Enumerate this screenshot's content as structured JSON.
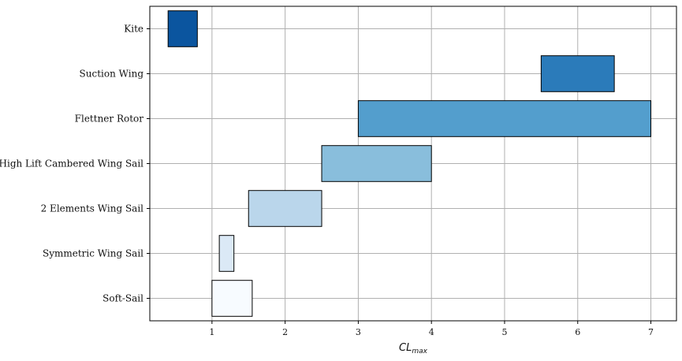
{
  "chart_data": {
    "type": "bar",
    "orientation": "horizontal-range",
    "title": "",
    "xlabel": "CL",
    "xlabel_subscript": "max",
    "ylabel": "",
    "xlim": [
      0.15,
      7.35
    ],
    "xticks": [
      "1",
      "2",
      "3",
      "4",
      "5",
      "6",
      "7"
    ],
    "grid": true,
    "categories": [
      "Kite",
      "Suction Wing",
      "Flettner Rotor",
      "High Lift Cambered Wing Sail",
      "2 Elements Wing Sail",
      "Symmetric Wing Sail",
      "Soft-Sail"
    ],
    "ranges": [
      {
        "start": 0.4,
        "end": 0.8,
        "color": "#0b559f"
      },
      {
        "start": 5.5,
        "end": 6.5,
        "color": "#2b7bba"
      },
      {
        "start": 3.0,
        "end": 7.0,
        "color": "#539ecd"
      },
      {
        "start": 2.5,
        "end": 4.0,
        "color": "#89bedc"
      },
      {
        "start": 1.5,
        "end": 2.5,
        "color": "#bad6eb"
      },
      {
        "start": 1.1,
        "end": 1.3,
        "color": "#dbe9f6"
      },
      {
        "start": 1.0,
        "end": 1.55,
        "color": "#f7fbff"
      }
    ]
  }
}
